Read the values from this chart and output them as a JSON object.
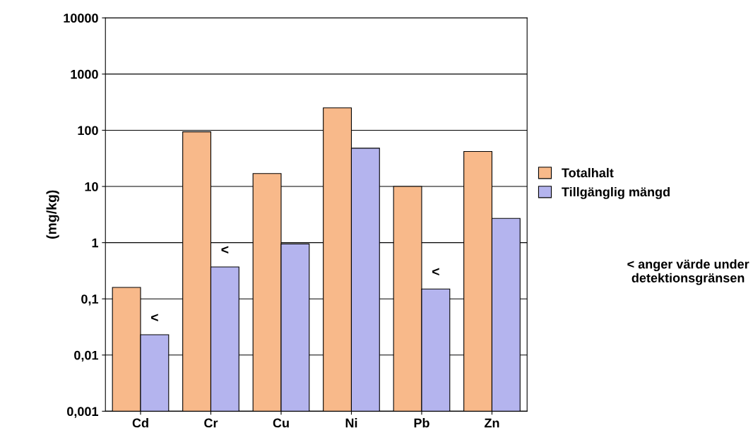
{
  "chart_data": {
    "type": "bar",
    "ylabel": "(mg/kg)",
    "log": "y",
    "grid": "y",
    "legend": "right",
    "categories": [
      "Cd",
      "Cr",
      "Cu",
      "Ni",
      "Pb",
      "Zn"
    ],
    "series": [
      {
        "name": "Totalhalt",
        "color": "#f8b98a",
        "values": [
          0.16,
          94,
          17,
          250,
          10,
          42
        ]
      },
      {
        "name": "Tillgänglig mängd",
        "color": "#b4b4ee",
        "values": [
          0.023,
          0.37,
          0.95,
          48,
          0.15,
          2.7
        ]
      }
    ],
    "ylim": [
      0.001,
      10000
    ],
    "yticks": [
      {
        "value": 0.001,
        "label": "0,001"
      },
      {
        "value": 0.01,
        "label": "0,01"
      },
      {
        "value": 0.1,
        "label": "0,1"
      },
      1,
      10,
      100,
      1000,
      10000
    ],
    "annotations": [
      {
        "text": "<",
        "x": "Cd",
        "y": 0.023
      },
      {
        "text": "<",
        "x": "Cr",
        "y": 0.37
      },
      {
        "text": "<",
        "x": "Pb",
        "y": 0.15
      },
      "< anger värde under\ndetektionsgränsen"
    ]
  }
}
